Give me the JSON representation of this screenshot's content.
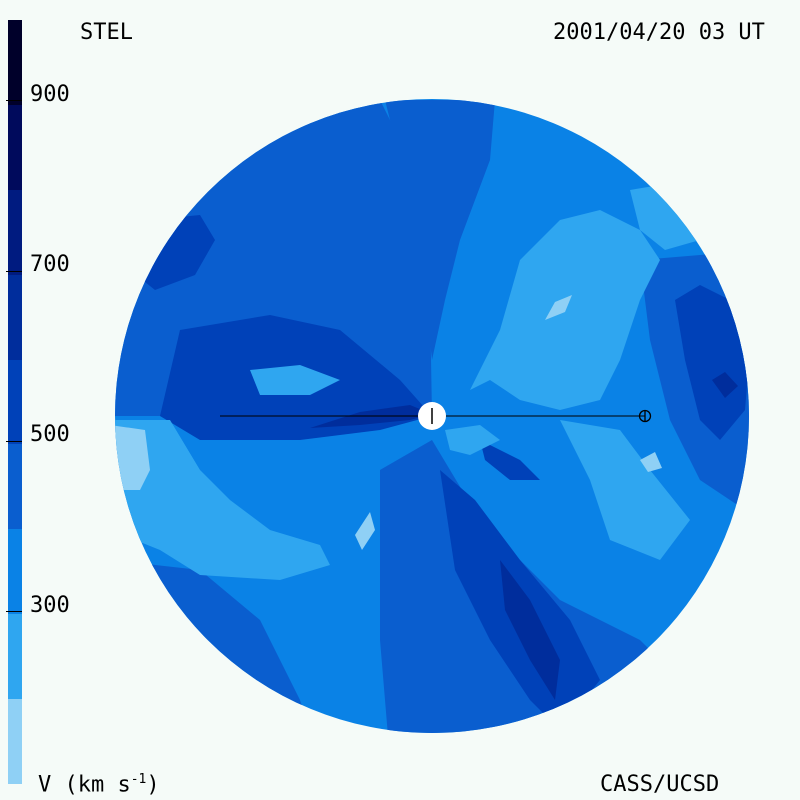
{
  "header": {
    "left_title": "STEL",
    "timestamp": "2001/04/20 03 UT"
  },
  "footer": {
    "quantity_label": "V (km s",
    "quantity_exponent": "-1",
    "quantity_close": ")",
    "credit": "CASS/UCSD"
  },
  "colorbar": {
    "ticks": [
      "900",
      "700",
      "500",
      "300"
    ],
    "levels": [
      {
        "value": 1000,
        "color": "#00002a"
      },
      {
        "value": 900,
        "color": "#000a5c"
      },
      {
        "value": 800,
        "color": "#001b80"
      },
      {
        "value": 700,
        "color": "#002d9c"
      },
      {
        "value": 600,
        "color": "#0041b8"
      },
      {
        "value": 500,
        "color": "#0a5ecf"
      },
      {
        "value": 400,
        "color": "#0a82e6"
      },
      {
        "value": 300,
        "color": "#2fa6f0"
      },
      {
        "value": 200,
        "color": "#8fd0f5"
      }
    ]
  },
  "colors": {
    "background": "#f5fbf8",
    "sun": "#ffffff",
    "earth_line": "#000000"
  },
  "markers": {
    "sun_symbol": "sun",
    "earth_symbol": "earth-symbol"
  }
}
